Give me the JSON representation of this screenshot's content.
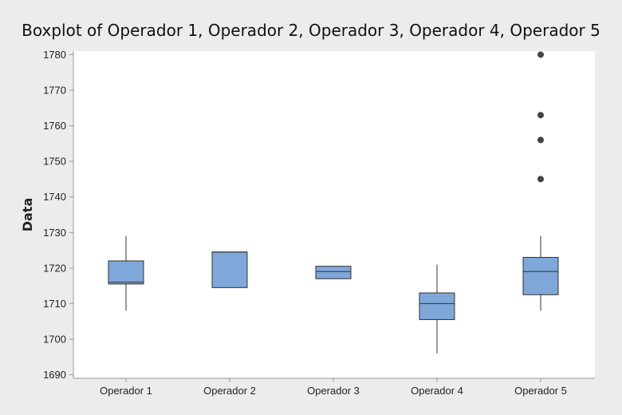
{
  "chart_data": {
    "type": "boxplot",
    "title": "Boxplot of Operador 1, Operador 2, Operador 3, Operador 4, Operador 5",
    "xlabel": "",
    "ylabel": "Data",
    "ylim": [
      1689,
      1781
    ],
    "yticks": [
      1690,
      1700,
      1710,
      1720,
      1730,
      1740,
      1750,
      1760,
      1770,
      1780
    ],
    "grid": false,
    "box_color": "#7fa7d9",
    "outlier_color": "#444444",
    "categories": [
      "Operador 1",
      "Operador 2",
      "Operador 3",
      "Operador 4",
      "Operador 5"
    ],
    "boxes": [
      {
        "name": "Operador 1",
        "whisker_low": 1708,
        "q1": 1715.5,
        "median": 1716,
        "q3": 1722,
        "whisker_high": 1729,
        "outliers": []
      },
      {
        "name": "Operador 2",
        "whisker_low": 1714.5,
        "q1": 1714.5,
        "median": 1724.5,
        "q3": 1724.5,
        "whisker_high": 1724.5,
        "outliers": []
      },
      {
        "name": "Operador 3",
        "whisker_low": 1717,
        "q1": 1717,
        "median": 1719,
        "q3": 1720.5,
        "whisker_high": 1720.5,
        "outliers": []
      },
      {
        "name": "Operador 4",
        "whisker_low": 1696,
        "q1": 1705.5,
        "median": 1710,
        "q3": 1713,
        "whisker_high": 1721,
        "outliers": []
      },
      {
        "name": "Operador 5",
        "whisker_low": 1708,
        "q1": 1712.5,
        "median": 1719,
        "q3": 1723,
        "whisker_high": 1729,
        "outliers": [
          1745,
          1756,
          1763,
          1780
        ]
      }
    ]
  }
}
